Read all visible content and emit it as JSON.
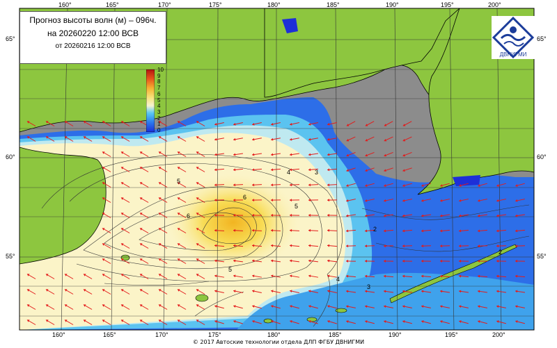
{
  "map": {
    "title_line1": "Прогноз высоты волн (м) – 096ч.",
    "title_line2": "на 20260220 12:00 ВСВ",
    "title_line3": "от 20260216 12:00 ВСВ",
    "org_logo_text": "ДВНИГМИ",
    "footer": "© 2017 Автоские технологии отдела ДЛП ФГБУ ДВНИГМИ",
    "lon_labels": [
      "160°",
      "165°",
      "170°",
      "175°",
      "180°",
      "185°",
      "190°",
      "195°",
      "200°"
    ],
    "lat_labels": [
      "65°",
      "60°",
      "55°"
    ],
    "colorbar_ticks": [
      "10",
      "9",
      "8",
      "7",
      "6",
      "5",
      "4",
      "3",
      "2",
      "1",
      "0"
    ],
    "contour_labels": [
      "5",
      "4",
      "3",
      "6",
      "5",
      "6",
      "2",
      "5",
      "4",
      "3",
      "2"
    ],
    "colors": {
      "land": "#8dc63f",
      "no_data": "#8c8c8c",
      "ocean_high": "#f3c42d",
      "ocean_mid": "#fbf4c8",
      "ocean_low": "#2d6ee8",
      "arrow": "#e31b1b",
      "grid": "#333333"
    },
    "icons": [
      "wave-arrow-icon",
      "logo-icon"
    ]
  }
}
